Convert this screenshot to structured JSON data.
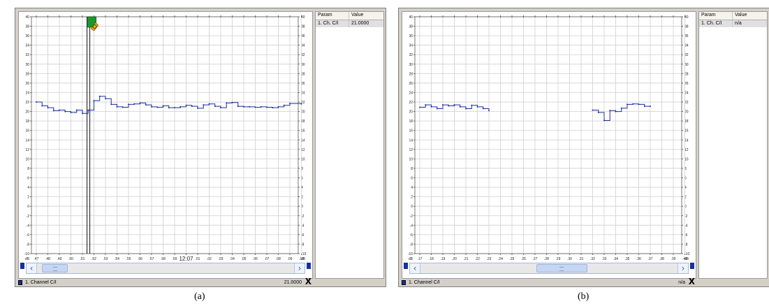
{
  "panels": [
    {
      "id": "a",
      "caption": "(a)",
      "axis": {
        "y_min": -10,
        "y_max": 40,
        "y_step": 2,
        "y_tick_labels": [
          "40",
          "38",
          "36",
          "34",
          "32",
          "30",
          "28",
          "26",
          "24",
          "22",
          "20",
          "18",
          "16",
          "14",
          "12",
          "10",
          "8",
          "6",
          "4",
          "2",
          "0",
          "-2",
          "-4",
          "-6",
          "-8",
          "-10"
        ],
        "y_unit": "dB",
        "x_tick_labels": [
          ".47",
          ".48",
          ".49",
          ".50",
          ".51",
          ".52",
          ".53",
          ".54",
          ".55",
          ".56",
          ".57",
          ".58",
          ".59",
          "12:07",
          ".01",
          ".02",
          ".03",
          ".04",
          ".05",
          ".06",
          ".07",
          ".08",
          ".09",
          ".10"
        ]
      },
      "cursor_index": 4.4,
      "marker": {
        "present": true,
        "icon": "flag-marker-icon"
      },
      "series": {
        "name": "1. Channel C/I",
        "color": "#1a2f9e",
        "points": [
          [
            0,
            22
          ],
          [
            0.5,
            21.2
          ],
          [
            1,
            20.8
          ],
          [
            1.5,
            20.2
          ],
          [
            2,
            20.3
          ],
          [
            2.5,
            20
          ],
          [
            3,
            19.8
          ],
          [
            3.5,
            20.3
          ],
          [
            4,
            19.6
          ],
          [
            4.5,
            20.3
          ],
          [
            5,
            22.3
          ],
          [
            5.5,
            23.2
          ],
          [
            6,
            22.7
          ],
          [
            6.5,
            21.5
          ],
          [
            7,
            21
          ],
          [
            7.5,
            20.9
          ],
          [
            8,
            21.5
          ],
          [
            8.5,
            21.6
          ],
          [
            9,
            21.8
          ],
          [
            9.5,
            21.4
          ],
          [
            10,
            21
          ],
          [
            10.5,
            20.9
          ],
          [
            11,
            21.2
          ],
          [
            11.5,
            20.8
          ],
          [
            12,
            20.8
          ],
          [
            12.5,
            21
          ],
          [
            13,
            21.3
          ],
          [
            13.5,
            21.1
          ],
          [
            14,
            20.7
          ],
          [
            14.5,
            21.4
          ],
          [
            15,
            21.6
          ],
          [
            15.5,
            21.1
          ],
          [
            16,
            20.8
          ],
          [
            16.5,
            21.8
          ],
          [
            17,
            21.9
          ],
          [
            17.5,
            21.1
          ],
          [
            18,
            21
          ],
          [
            18.5,
            21
          ],
          [
            19,
            20.9
          ],
          [
            19.5,
            21
          ],
          [
            20,
            20.9
          ],
          [
            20.5,
            20.8
          ],
          [
            21,
            21
          ],
          [
            21.5,
            21.3
          ],
          [
            22,
            21.7
          ],
          [
            23,
            21.6
          ]
        ]
      },
      "params_table": {
        "headers": [
          "Param",
          "Value"
        ],
        "rows": [
          [
            "1. Ch. C/I",
            "21.0000"
          ]
        ]
      },
      "scrollbar": {
        "position": 0.02,
        "size": 0.1
      },
      "status": {
        "legend_label": "1. Channel C/I",
        "value": "21.0000",
        "close_label": "X"
      }
    },
    {
      "id": "b",
      "caption": "(b)",
      "axis": {
        "y_min": -10,
        "y_max": 40,
        "y_step": 2,
        "y_tick_labels": [
          "40",
          "38",
          "36",
          "34",
          "32",
          "30",
          "28",
          "26",
          "24",
          "22",
          "20",
          "18",
          "16",
          "14",
          "12",
          "10",
          "8",
          "6",
          "4",
          "2",
          "0",
          "-2",
          "-4",
          "-6",
          "-8",
          "-10"
        ],
        "y_unit": "dB",
        "x_tick_labels": [
          ".17",
          ".18",
          ".19",
          ".20",
          ".21",
          ".22",
          ".23",
          ".24",
          ".25",
          ".26",
          ".27",
          ".28",
          ".29",
          ".30",
          ".31",
          ".32",
          ".33",
          ".34",
          ".35",
          ".36",
          ".37",
          ".38",
          ".39",
          ".40"
        ]
      },
      "cursor_index": null,
      "marker": {
        "present": false,
        "icon": ""
      },
      "series": {
        "name": "1. Channel C/I",
        "color": "#1a2f9e",
        "segments": [
          [
            [
              0,
              20.9
            ],
            [
              0.5,
              21.4
            ],
            [
              1,
              21
            ],
            [
              1.5,
              20.6
            ],
            [
              2,
              21.4
            ],
            [
              2.5,
              21.2
            ],
            [
              3,
              21.4
            ],
            [
              3.5,
              21
            ],
            [
              4,
              20.6
            ],
            [
              4.5,
              21.3
            ],
            [
              5,
              21
            ],
            [
              5.5,
              20.6
            ],
            [
              6,
              20.2
            ]
          ],
          [
            [
              15,
              20.3
            ],
            [
              15.5,
              19.8
            ],
            [
              16,
              18.1
            ],
            [
              16.5,
              20.2
            ],
            [
              17,
              20
            ],
            [
              17.5,
              20.7
            ],
            [
              18,
              21.5
            ],
            [
              18.5,
              21.6
            ],
            [
              19,
              21.5
            ],
            [
              19.5,
              21.1
            ],
            [
              20,
              21.1
            ]
          ]
        ]
      },
      "params_table": {
        "headers": [
          "Param",
          "Value"
        ],
        "rows": [
          [
            "1. Ch. C/I",
            "n/a"
          ]
        ]
      },
      "scrollbar": {
        "position": 0.45,
        "size": 0.2
      },
      "status": {
        "legend_label": "1. Channel C/I",
        "value": "n/a",
        "close_label": "X"
      }
    }
  ]
}
